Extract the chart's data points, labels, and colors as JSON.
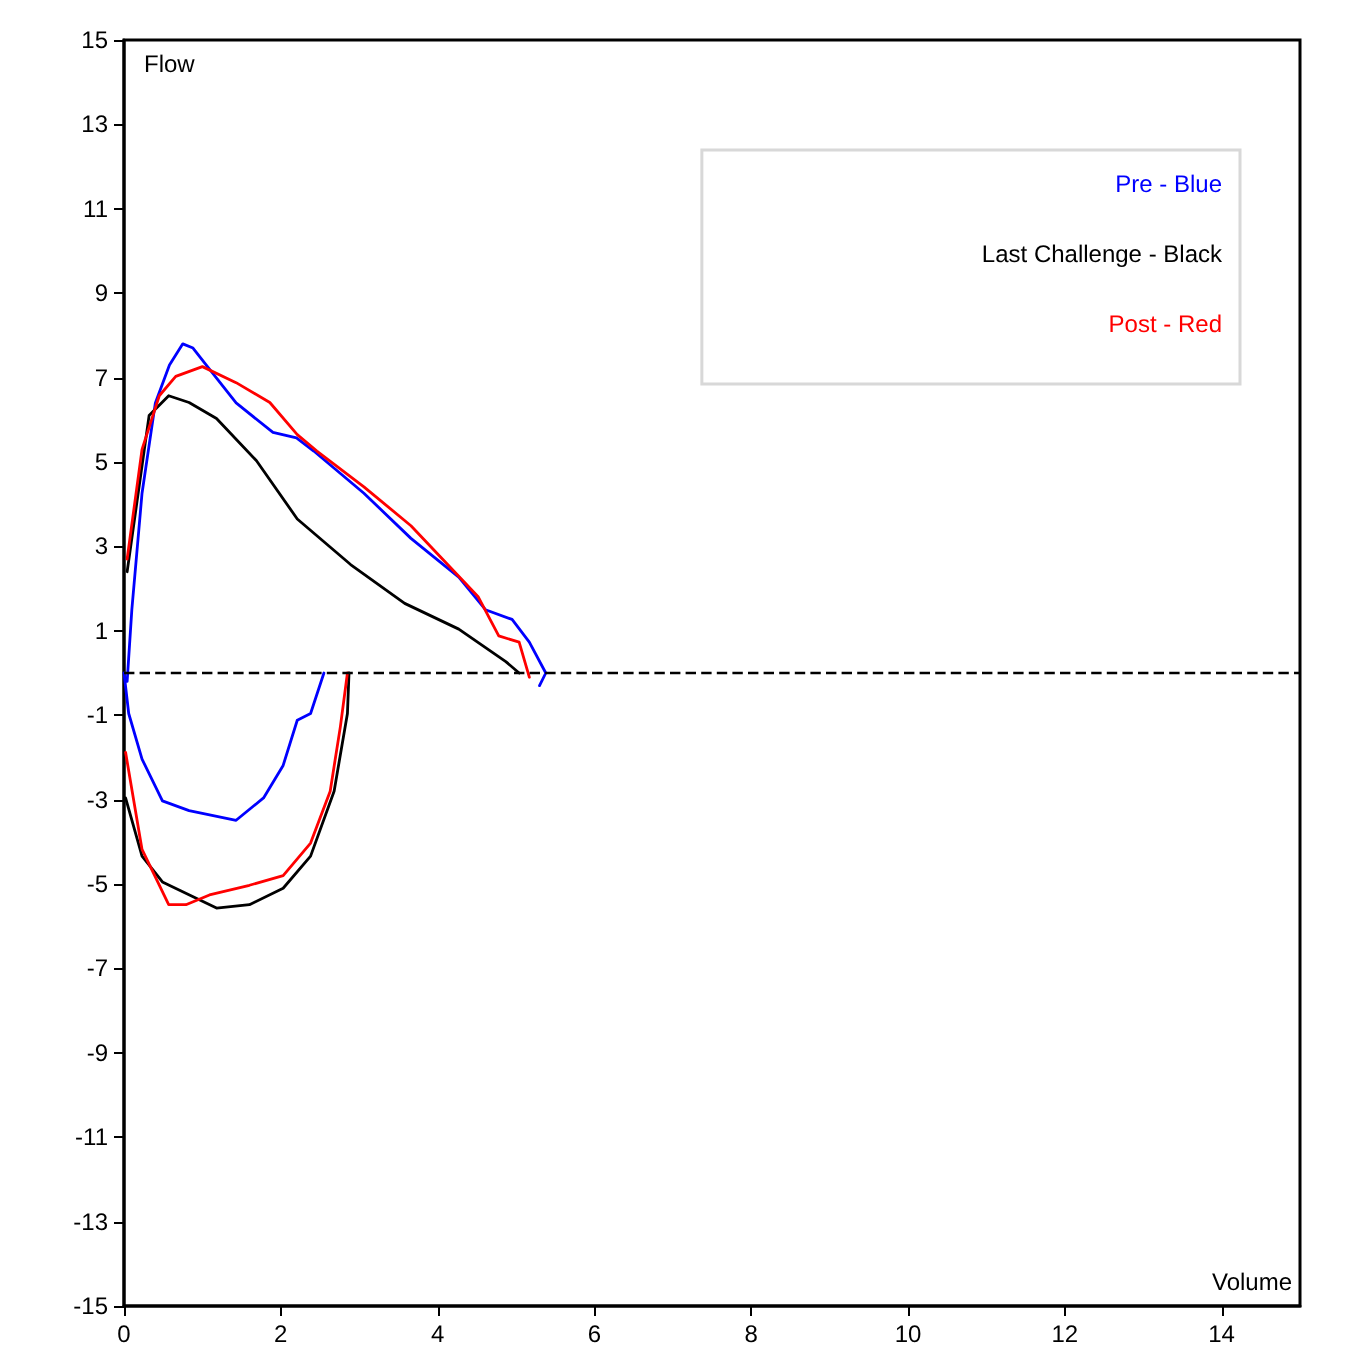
{
  "chart_data": {
    "type": "line",
    "xlabel": "Volume",
    "ylabel": "Flow",
    "xlim": [
      0,
      15
    ],
    "xticks": [
      0,
      2,
      4,
      6,
      8,
      10,
      12,
      14
    ],
    "ylim": [
      -15,
      15
    ],
    "yticks": [
      -15,
      -13,
      -11,
      -9,
      -7,
      -5,
      -3,
      -1,
      1,
      3,
      5,
      7,
      9,
      11,
      13,
      15
    ],
    "grid": false,
    "legend": "top right",
    "marker": "none",
    "line_style": "solid",
    "ref_lines": [
      {
        "axis": "y",
        "value": 0,
        "color": "#000000",
        "line_style": "dashed"
      }
    ],
    "series": [
      {
        "name": "Pre - Blue",
        "color": "#0000ff",
        "x": [
          0.04,
          0.1,
          0.23,
          0.4,
          0.58,
          0.75,
          0.88,
          1.09,
          1.43,
          1.9,
          2.2,
          2.42,
          3.06,
          3.66,
          4.27,
          4.61,
          4.95,
          5.17,
          5.38,
          5.3,
          null,
          0,
          0.06,
          0.23,
          0.49,
          0.83,
          1.43,
          1.78,
          2.03,
          2.21,
          2.38,
          2.55
        ],
        "values": [
          -0.2,
          1.5,
          4.26,
          6.4,
          7.3,
          7.8,
          7.7,
          7.2,
          6.4,
          5.7,
          5.57,
          5.26,
          4.26,
          3.19,
          2.27,
          1.5,
          1.27,
          0.73,
          0,
          -0.3,
          null,
          0,
          -0.96,
          -2.04,
          -3.03,
          -3.26,
          -3.49,
          -2.96,
          -2.19,
          -1.12,
          -0.96,
          0
        ]
      },
      {
        "name": "Last Challenge - Black",
        "color": "#000000",
        "x": [
          0.04,
          0.32,
          0.57,
          0.83,
          1.18,
          1.69,
          2.21,
          2.89,
          3.58,
          4.27,
          4.87,
          5.04,
          null,
          0.02,
          0.23,
          0.49,
          1.18,
          1.6,
          2.03,
          2.38,
          2.68,
          2.85,
          2.87
        ],
        "values": [
          2.4,
          6.1,
          6.57,
          6.41,
          6.03,
          5.03,
          3.65,
          2.57,
          1.65,
          1.04,
          0.27,
          0,
          null,
          -2.96,
          -4.34,
          -4.95,
          -5.57,
          -5.49,
          -5.1,
          -4.34,
          -2.8,
          -0.96,
          0
        ]
      },
      {
        "name": "Post - Red",
        "color": "#ff0000",
        "x": [
          0.04,
          0.23,
          0.45,
          0.66,
          1.0,
          1.43,
          1.86,
          2.21,
          2.46,
          3.06,
          3.66,
          4.52,
          4.78,
          5.04,
          5.17,
          null,
          0.02,
          0.23,
          0.57,
          0.79,
          1.09,
          1.6,
          2.03,
          2.38,
          2.63,
          2.76,
          2.85
        ],
        "values": [
          2.7,
          5.3,
          6.57,
          7.03,
          7.26,
          6.88,
          6.41,
          5.65,
          5.26,
          4.41,
          3.49,
          1.8,
          0.88,
          0.73,
          -0.1,
          null,
          -1.88,
          -4.18,
          -5.49,
          -5.49,
          -5.26,
          -5.03,
          -4.8,
          -4.03,
          -2.8,
          -1.27,
          0
        ]
      }
    ]
  }
}
